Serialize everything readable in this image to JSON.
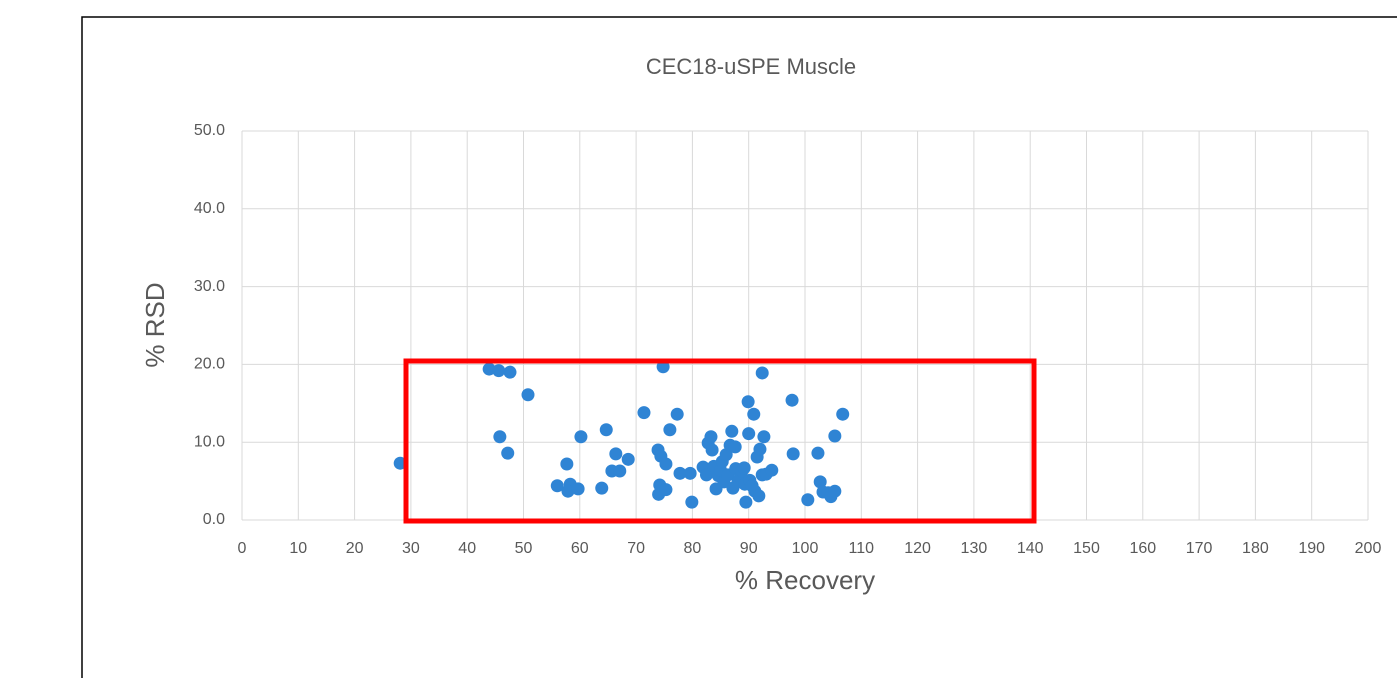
{
  "chart_data": {
    "type": "scatter",
    "title": "CEC18-uSPE Muscle",
    "xlabel": "% Recovery",
    "ylabel": "% RSD",
    "x": [
      28.1,
      43.9,
      45.6,
      47.6,
      50.8,
      45.8,
      47.2,
      56.0,
      57.7,
      58.3,
      57.9,
      59.7,
      60.2,
      63.9,
      64.7,
      65.7,
      66.4,
      67.1,
      68.6,
      71.4,
      73.9,
      74.4,
      74.2,
      74.0,
      75.3,
      74.8,
      75.3,
      76.0,
      77.3,
      77.8,
      79.6,
      79.9,
      81.9,
      82.5,
      82.8,
      83.3,
      83.5,
      83.8,
      84.2,
      84.6,
      85.0,
      85.3,
      85.6,
      86.0,
      86.3,
      86.7,
      87.0,
      87.2,
      87.6,
      87.7,
      88.1,
      88.5,
      88.8,
      89.2,
      89.3,
      89.5,
      89.9,
      90.0,
      90.2,
      90.6,
      90.9,
      91.1,
      91.5,
      91.8,
      92.0,
      92.4,
      92.7,
      92.4,
      93.1,
      94.1,
      97.7,
      97.9,
      100.5,
      102.3,
      102.7,
      103.2,
      104.1,
      104.6,
      105.3,
      105.3,
      106.7
    ],
    "series": [
      {
        "name": "% RSD",
        "color": "#2f84d4",
        "values": [
          7.3,
          19.4,
          19.2,
          19.0,
          16.1,
          10.7,
          8.6,
          4.4,
          7.2,
          4.6,
          3.7,
          4.0,
          10.7,
          4.1,
          11.6,
          6.3,
          8.5,
          6.3,
          7.8,
          13.8,
          9.0,
          8.2,
          4.5,
          3.3,
          3.9,
          19.7,
          7.2,
          11.6,
          13.6,
          6.0,
          6.0,
          2.3,
          6.8,
          5.8,
          9.9,
          10.7,
          9.0,
          6.9,
          4.0,
          5.7,
          6.4,
          7.5,
          4.9,
          8.4,
          5.8,
          9.6,
          11.4,
          4.1,
          9.4,
          6.6,
          4.9,
          5.5,
          6.3,
          6.7,
          4.6,
          2.3,
          15.2,
          11.1,
          5.1,
          4.4,
          13.6,
          3.7,
          8.1,
          3.1,
          9.1,
          18.9,
          10.7,
          5.8,
          5.9,
          6.4,
          15.4,
          8.5,
          2.6,
          8.6,
          4.9,
          3.6,
          3.5,
          3.0,
          3.7,
          10.8,
          13.6
        ]
      }
    ],
    "xlim": [
      0,
      200
    ],
    "xticks": [
      0,
      10,
      20,
      30,
      40,
      50,
      60,
      70,
      80,
      90,
      100,
      110,
      120,
      130,
      140,
      150,
      160,
      170,
      180,
      190,
      200
    ],
    "ylim": [
      0,
      50
    ],
    "yticks": [
      {
        "value": 0,
        "label": "0.0"
      },
      {
        "value": 10,
        "label": "10.0"
      },
      {
        "value": 20,
        "label": "20.0"
      },
      {
        "value": 30,
        "label": "30.0"
      },
      {
        "value": 40,
        "label": "40.0"
      },
      {
        "value": 50,
        "label": "50.0"
      }
    ],
    "grid": true
  }
}
